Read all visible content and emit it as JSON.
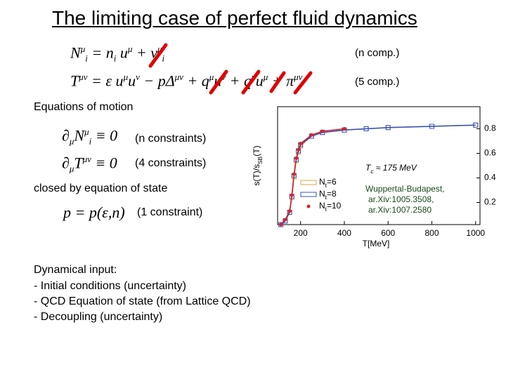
{
  "title": "The limiting case of perfect fluid dynamics",
  "decompositions": [
    {
      "equation": "N^{μ}_{i} = n_{i} u^{μ} + ν^{μ}_{i}",
      "note": "(n comp.)"
    },
    {
      "equation": "T^{μν} = ε u^{μ}u^{ν} − pΔ^{μν} + q^{μ}u^{ν} + q^{ν}u^{μ} + π^{μν}",
      "note": "(5 comp.)"
    }
  ],
  "motion_heading": "Equations of motion",
  "motion": [
    {
      "equation": "∂_{μ}N^{μ}_{i} ≡ 0",
      "note": "(n constraints)"
    },
    {
      "equation": "∂_{μ}T^{μν} ≡ 0",
      "note": "(4 constraints)"
    }
  ],
  "eos_heading": "closed by equation of state",
  "eos": {
    "equation": "p = p(ε,n)",
    "note": "(1 constraint)"
  },
  "input": [
    "Dynamical input:",
    "-  Initial conditions (uncertainty)",
    "-  QCD Equation of state    (from Lattice QCD)",
    "-  Decoupling (uncertainty)"
  ],
  "chart_data": {
    "type": "line",
    "x_label": "T[MeV]",
    "y_label": "s(T)/s_{SB}(T)",
    "annotation": "T_{c} ≈ 175 MeV",
    "source": [
      "Wuppertal-Budapest,",
      "ar.Xiv:1005.3508,",
      "ar.Xiv:1007.2580"
    ],
    "x": [
      110,
      130,
      150,
      160,
      170,
      180,
      190,
      200,
      250,
      300,
      400,
      500,
      600,
      800,
      1000
    ],
    "series": [
      {
        "name": "N_{t}=6",
        "color": "#e8a040",
        "values": [
          0.02,
          0.05,
          0.12,
          0.24,
          0.41,
          0.54,
          0.61,
          0.66,
          0.74,
          0.77,
          0.79,
          0.8,
          0.81,
          0.82,
          0.83
        ]
      },
      {
        "name": "N_{t}=8",
        "color": "#3050c0",
        "values": [
          0.02,
          0.05,
          0.12,
          0.25,
          0.42,
          0.55,
          0.62,
          0.67,
          0.74,
          0.77,
          0.79,
          0.8,
          0.81,
          0.82,
          0.83
        ]
      },
      {
        "name": "N_{t}=10",
        "color": "#e02020",
        "values": [
          0.02,
          0.06,
          0.13,
          0.26,
          0.43,
          0.56,
          0.63,
          0.68,
          0.75,
          0.78,
          0.8,
          null,
          null,
          null,
          null
        ]
      }
    ],
    "xlim": [
      95,
      1020
    ],
    "xticks": [
      200,
      400,
      600,
      800,
      1000
    ],
    "ylim": [
      0.02,
      0.98
    ],
    "yticks": [
      0.2,
      0.4,
      0.6,
      0.8
    ]
  }
}
